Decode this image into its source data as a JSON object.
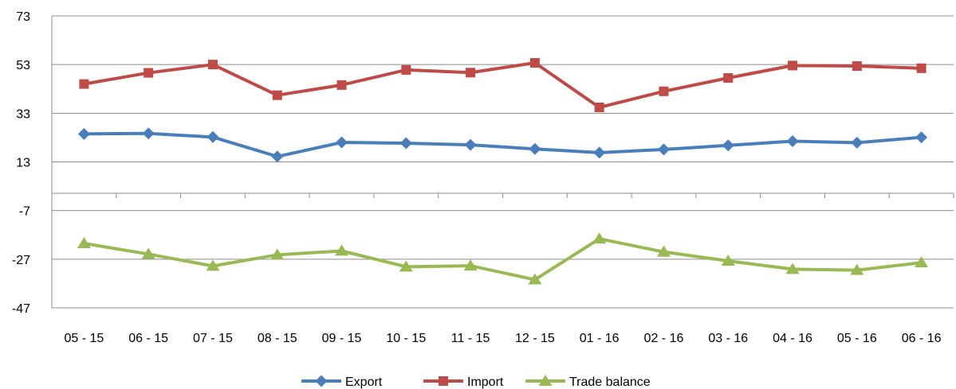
{
  "chart_data": {
    "type": "line",
    "title": "",
    "xlabel": "",
    "ylabel": "",
    "categories": [
      "05 - 15",
      "06 - 15",
      "07 - 15",
      "08 - 15",
      "09 - 15",
      "10 - 15",
      "11 - 15",
      "12 - 15",
      "01 - 16",
      "02 - 16",
      "03 - 16",
      "04 - 16",
      "05 - 16",
      "06 - 16"
    ],
    "ylim": [
      -47,
      73
    ],
    "yticks": [
      73,
      53,
      33,
      13,
      -7,
      -27,
      -47
    ],
    "ytick_labels": [
      "73",
      "53",
      "33",
      "13",
      "-7",
      "-27",
      "-47"
    ],
    "grid": true,
    "legend_position": "bottom",
    "series": [
      {
        "name": "Export",
        "color": "#4a7ebb",
        "marker": "diamond",
        "values": [
          24.5,
          24.7,
          23.2,
          15.2,
          21.0,
          20.7,
          20.0,
          18.3,
          16.8,
          18.1,
          19.8,
          21.5,
          20.9,
          23.1
        ]
      },
      {
        "name": "Import",
        "color": "#be4b48",
        "marker": "square",
        "values": [
          45.0,
          49.6,
          53.0,
          40.4,
          44.6,
          50.8,
          49.7,
          53.7,
          35.4,
          42.0,
          47.5,
          52.6,
          52.4,
          51.5
        ]
      },
      {
        "name": "Trade balance",
        "color": "#98b954",
        "marker": "triangle",
        "values": [
          -20.5,
          -24.9,
          -29.8,
          -25.2,
          -23.6,
          -30.1,
          -29.7,
          -35.4,
          -18.6,
          -24.0,
          -27.7,
          -31.1,
          -31.5,
          -28.4
        ]
      }
    ]
  }
}
